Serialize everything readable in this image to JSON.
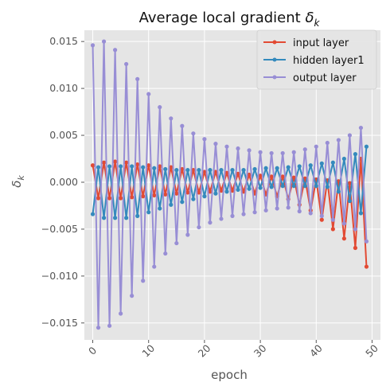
{
  "chart_data": {
    "type": "line",
    "title": "Average local gradient δ_k",
    "xlabel": "epoch",
    "ylabel": "δ_k",
    "xlim": [
      -1.5,
      51.5
    ],
    "ylim": [
      -0.0168,
      0.0162
    ],
    "xticks": [
      0,
      10,
      20,
      30,
      40,
      50
    ],
    "yticks": [
      -0.015,
      -0.01,
      -0.005,
      0.0,
      0.005,
      0.01,
      0.015
    ],
    "ytick_labels": [
      "−0.015",
      "−0.010",
      "−0.005",
      "0.000",
      "0.005",
      "0.010",
      "0.015"
    ],
    "grid": true,
    "legend_position": "top-right",
    "x": [
      0,
      1,
      2,
      3,
      4,
      5,
      6,
      7,
      8,
      9,
      10,
      11,
      12,
      13,
      14,
      15,
      16,
      17,
      18,
      19,
      20,
      21,
      22,
      23,
      24,
      25,
      26,
      27,
      28,
      29,
      30,
      31,
      32,
      33,
      34,
      35,
      36,
      37,
      38,
      39,
      40,
      41,
      42,
      43,
      44,
      45,
      46,
      47,
      48,
      49
    ],
    "series": [
      {
        "name": "input layer",
        "color": "#E24A33",
        "values": [
          0.0018,
          -0.0017,
          0.0021,
          -0.0017,
          0.0022,
          -0.0017,
          0.0021,
          -0.0016,
          0.0019,
          -0.0015,
          0.0018,
          -0.0014,
          0.0017,
          -0.0013,
          0.0016,
          -0.0012,
          0.0014,
          -0.0011,
          0.0013,
          -0.0011,
          0.0011,
          -0.001,
          0.0011,
          -0.0009,
          0.001,
          -0.0009,
          0.0009,
          -0.001,
          0.0008,
          -0.0012,
          0.0007,
          -0.0013,
          0.0006,
          -0.0015,
          0.0006,
          -0.0018,
          0.0005,
          -0.0024,
          0.0004,
          -0.003,
          0.0003,
          -0.004,
          0.0002,
          -0.005,
          0.0001,
          -0.006,
          -0.0001,
          -0.007,
          0.0025,
          -0.009
        ]
      },
      {
        "name": "hidden layer1",
        "color": "#348ABD",
        "values": [
          -0.0034,
          0.0016,
          -0.0038,
          0.0017,
          -0.0038,
          0.0017,
          -0.0038,
          0.0017,
          -0.0036,
          0.0016,
          -0.0032,
          0.0015,
          -0.0028,
          0.0014,
          -0.0024,
          0.0013,
          -0.0021,
          0.0013,
          -0.0018,
          0.0013,
          -0.0015,
          0.0013,
          -0.0012,
          0.0013,
          -0.001,
          0.0013,
          -0.0008,
          0.0013,
          -0.0007,
          0.0014,
          -0.0006,
          0.0015,
          -0.0005,
          0.0015,
          -0.0004,
          0.0016,
          -0.0004,
          0.0017,
          -0.0004,
          0.0018,
          -0.0004,
          0.002,
          -0.0005,
          0.0021,
          -0.001,
          0.0025,
          -0.002,
          0.003,
          -0.0033,
          0.0038
        ]
      },
      {
        "name": "output layer",
        "color": "#988ED5",
        "values": [
          0.0146,
          -0.0155,
          0.015,
          -0.0153,
          0.0141,
          -0.014,
          0.0126,
          -0.0121,
          0.011,
          -0.0105,
          0.0094,
          -0.009,
          0.008,
          -0.0076,
          0.0068,
          -0.0065,
          0.006,
          -0.0056,
          0.0052,
          -0.0048,
          0.0046,
          -0.0043,
          0.0041,
          -0.0039,
          0.0038,
          -0.0036,
          0.0036,
          -0.0034,
          0.0034,
          -0.0032,
          0.0032,
          -0.003,
          0.0031,
          -0.0028,
          0.0031,
          -0.0027,
          0.0032,
          -0.0031,
          0.0035,
          -0.0033,
          0.0038,
          -0.0036,
          0.0042,
          -0.004,
          0.0045,
          -0.0044,
          0.005,
          -0.005,
          0.0058,
          -0.0063
        ]
      }
    ]
  }
}
